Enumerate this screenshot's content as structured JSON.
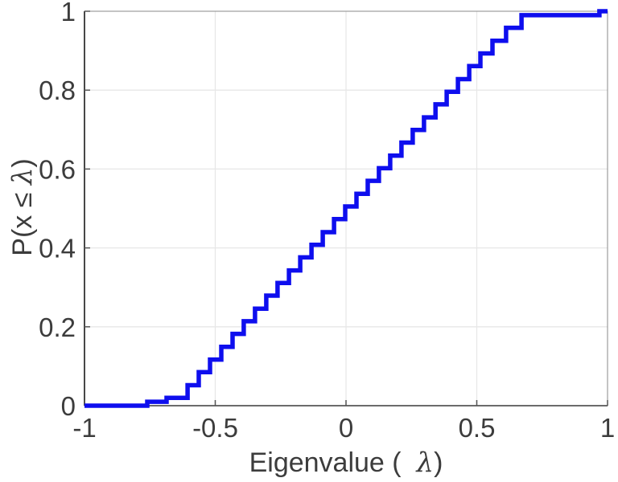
{
  "figure": {
    "background": "#ffffff",
    "xlabel": {
      "pre": "Eigenvalue (  ",
      "lambda": "λ",
      "post": ")"
    },
    "ylabel": {
      "pre": "P(x ≤ ",
      "lambda": "λ",
      "post": ")"
    }
  },
  "chart_data": {
    "type": "line",
    "subtype": "empirical-cdf-stairs",
    "title": "",
    "xlabel": "Eigenvalue (  λ)",
    "ylabel": "P(x ≤ λ)",
    "xlim": [
      -1,
      1
    ],
    "ylim": [
      0,
      1
    ],
    "grid": true,
    "legend": "none",
    "line_color": "#0e0eee",
    "line_width": 5.5,
    "grid_color": "#e7e7e7",
    "axis_color": "#555555",
    "tick_label_color": "#3c3c3c",
    "x_ticks": [
      {
        "value": -1,
        "label": "-1"
      },
      {
        "value": -0.5,
        "label": "-0.5"
      },
      {
        "value": 0,
        "label": "0"
      },
      {
        "value": 0.5,
        "label": "0.5"
      },
      {
        "value": 1,
        "label": "1"
      }
    ],
    "y_ticks": [
      {
        "value": 0,
        "label": "0"
      },
      {
        "value": 0.2,
        "label": "0.2"
      },
      {
        "value": 0.4,
        "label": "0.4"
      },
      {
        "value": 0.6,
        "label": "0.6"
      },
      {
        "value": 0.8,
        "label": "0.8"
      },
      {
        "value": 1,
        "label": "1"
      }
    ],
    "steps": [
      [
        -0.76,
        0.01
      ],
      [
        -0.686,
        0.02
      ],
      [
        -0.606,
        0.052
      ],
      [
        -0.563,
        0.085
      ],
      [
        -0.52,
        0.117
      ],
      [
        -0.477,
        0.149
      ],
      [
        -0.434,
        0.182
      ],
      [
        -0.391,
        0.214
      ],
      [
        -0.348,
        0.246
      ],
      [
        -0.305,
        0.279
      ],
      [
        -0.262,
        0.311
      ],
      [
        -0.218,
        0.343
      ],
      [
        -0.175,
        0.376
      ],
      [
        -0.132,
        0.408
      ],
      [
        -0.089,
        0.44
      ],
      [
        -0.046,
        0.473
      ],
      [
        -0.003,
        0.505
      ],
      [
        0.04,
        0.537
      ],
      [
        0.083,
        0.57
      ],
      [
        0.126,
        0.602
      ],
      [
        0.169,
        0.634
      ],
      [
        0.212,
        0.667
      ],
      [
        0.255,
        0.699
      ],
      [
        0.298,
        0.731
      ],
      [
        0.342,
        0.764
      ],
      [
        0.385,
        0.796
      ],
      [
        0.428,
        0.828
      ],
      [
        0.471,
        0.861
      ],
      [
        0.514,
        0.893
      ],
      [
        0.56,
        0.925
      ],
      [
        0.612,
        0.958
      ],
      [
        0.671,
        0.99
      ],
      [
        0.969,
        1.0
      ]
    ]
  }
}
